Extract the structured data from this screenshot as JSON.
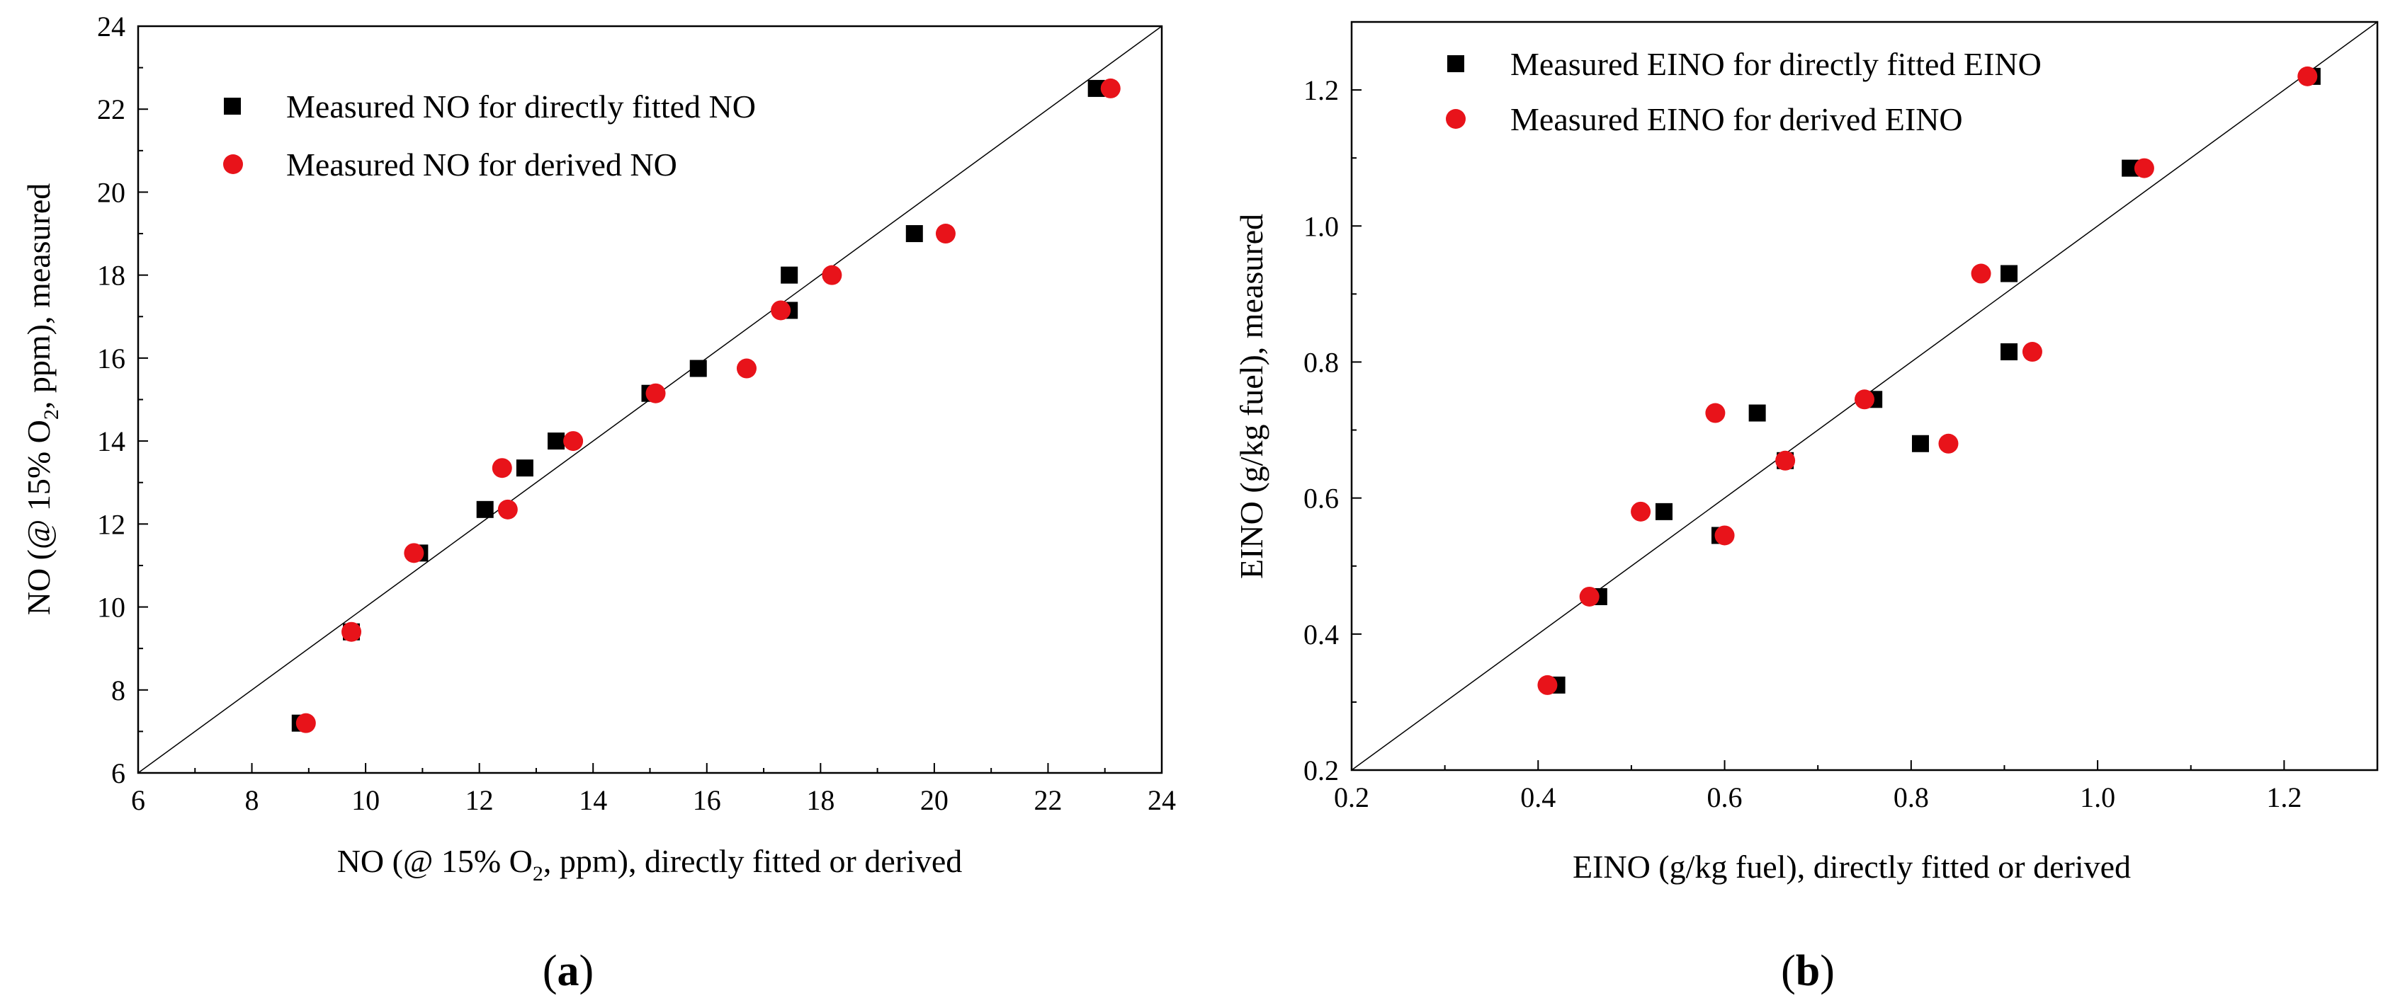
{
  "figure": {
    "background": "#ffffff"
  },
  "chart_data": [
    {
      "type": "scatter",
      "panel_label": {
        "open": "(",
        "letter": "a",
        "close": ")"
      },
      "title": "",
      "xlabel": {
        "pre": "NO (@ 15% O",
        "sub": "2",
        "post": ", ppm), directly fitted or derived"
      },
      "ylabel": {
        "pre": "NO (@ 15% O",
        "sub": "2",
        "post": ", ppm), measured"
      },
      "xlim": [
        6,
        24
      ],
      "ylim": [
        6,
        24
      ],
      "xticks": [
        6,
        8,
        10,
        12,
        14,
        16,
        18,
        20,
        22,
        24
      ],
      "yticks": [
        6,
        8,
        10,
        12,
        14,
        16,
        18,
        20,
        22,
        24
      ],
      "tick_decimals": 0,
      "grid": false,
      "reference_line": "y = x",
      "legend_position": "top-left",
      "series": [
        {
          "name": "Measured NO for directly fitted NO",
          "marker": "square",
          "color": "#000000",
          "points": [
            [
              8.85,
              7.2
            ],
            [
              9.75,
              9.4
            ],
            [
              10.95,
              11.3
            ],
            [
              12.1,
              12.35
            ],
            [
              12.8,
              13.35
            ],
            [
              13.35,
              14.0
            ],
            [
              15.0,
              15.15
            ],
            [
              15.85,
              15.75
            ],
            [
              17.45,
              17.15
            ],
            [
              17.45,
              18.0
            ],
            [
              19.65,
              19.0
            ],
            [
              22.85,
              22.5
            ]
          ]
        },
        {
          "name": "Measured NO for derived NO",
          "marker": "circle",
          "color": "#e8131a",
          "points": [
            [
              8.95,
              7.2
            ],
            [
              9.75,
              9.4
            ],
            [
              10.85,
              11.3
            ],
            [
              12.5,
              12.35
            ],
            [
              12.4,
              13.35
            ],
            [
              13.65,
              14.0
            ],
            [
              15.1,
              15.15
            ],
            [
              16.7,
              15.75
            ],
            [
              17.3,
              17.15
            ],
            [
              18.2,
              18.0
            ],
            [
              20.2,
              19.0
            ],
            [
              23.1,
              22.5
            ]
          ]
        }
      ]
    },
    {
      "type": "scatter",
      "panel_label": {
        "open": "(",
        "letter": "b",
        "close": ")"
      },
      "title": "",
      "xlabel": {
        "text": "EINO (g/kg fuel), directly fitted or derived"
      },
      "ylabel": {
        "text": "EINO (g/kg fuel), measured"
      },
      "xlim": [
        0.2,
        1.3
      ],
      "ylim": [
        0.2,
        1.3
      ],
      "xticks": [
        0.2,
        0.4,
        0.6,
        0.8,
        1.0,
        1.2
      ],
      "yticks": [
        0.2,
        0.4,
        0.6,
        0.8,
        1.0,
        1.2
      ],
      "tick_decimals": 1,
      "grid": false,
      "reference_line": "y = x",
      "legend_position": "top-left",
      "series": [
        {
          "name": "Measured EINO for directly fitted EINO",
          "marker": "square",
          "color": "#000000",
          "points": [
            [
              0.42,
              0.325
            ],
            [
              0.465,
              0.455
            ],
            [
              0.535,
              0.58
            ],
            [
              0.595,
              0.545
            ],
            [
              0.635,
              0.725
            ],
            [
              0.665,
              0.655
            ],
            [
              0.76,
              0.745
            ],
            [
              0.81,
              0.68
            ],
            [
              0.905,
              0.93
            ],
            [
              0.905,
              0.815
            ],
            [
              1.035,
              1.085
            ],
            [
              1.23,
              1.22
            ]
          ]
        },
        {
          "name": "Measured EINO for derived EINO",
          "marker": "circle",
          "color": "#e8131a",
          "points": [
            [
              0.41,
              0.325
            ],
            [
              0.455,
              0.455
            ],
            [
              0.51,
              0.58
            ],
            [
              0.6,
              0.545
            ],
            [
              0.59,
              0.725
            ],
            [
              0.665,
              0.655
            ],
            [
              0.75,
              0.745
            ],
            [
              0.84,
              0.68
            ],
            [
              0.875,
              0.93
            ],
            [
              0.93,
              0.815
            ],
            [
              1.05,
              1.085
            ],
            [
              1.225,
              1.22
            ]
          ]
        }
      ]
    }
  ]
}
